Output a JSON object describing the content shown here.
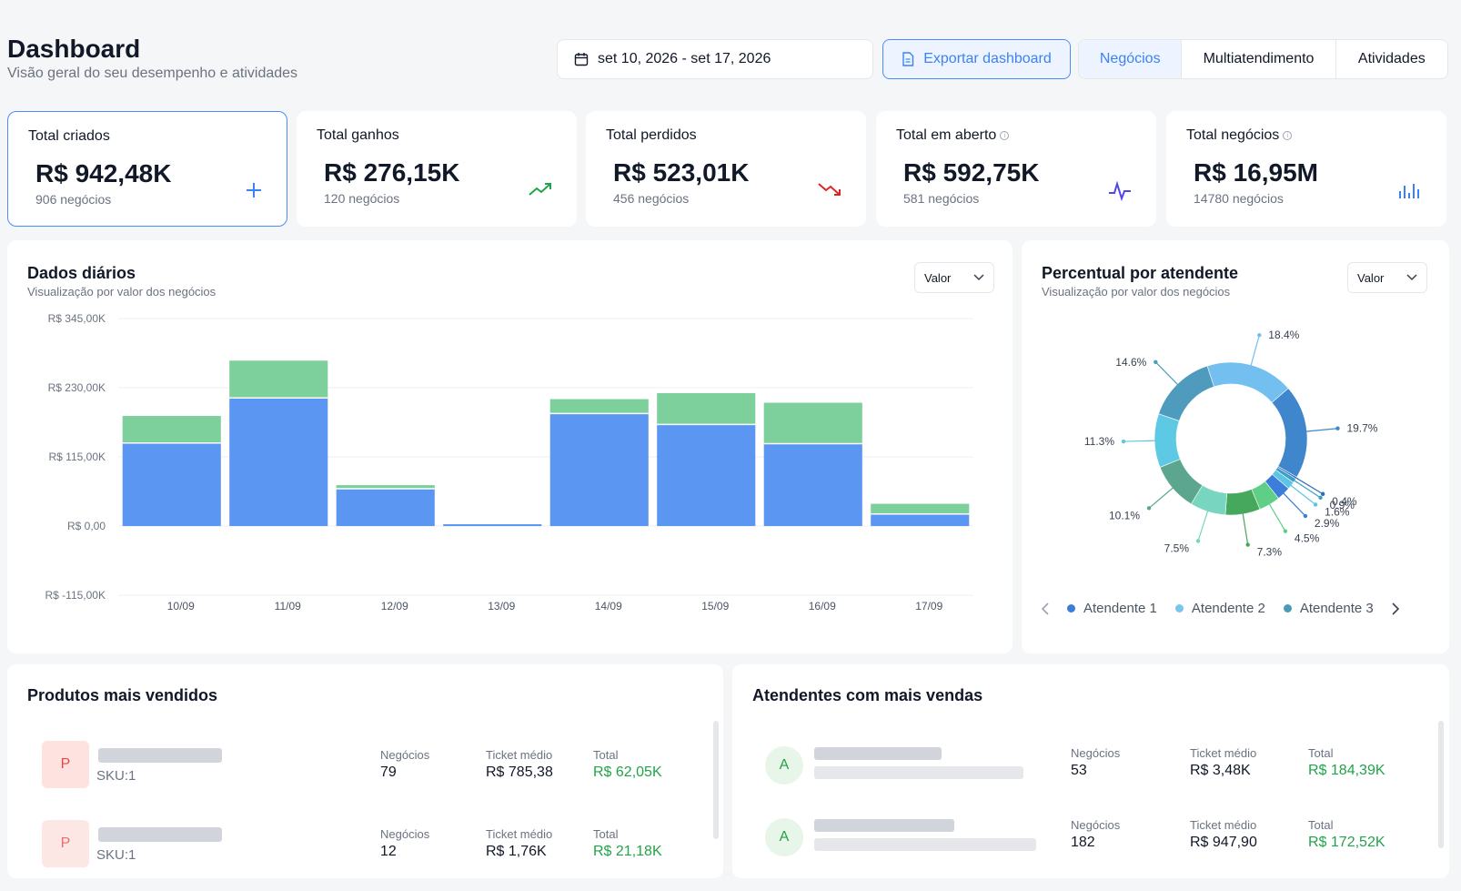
{
  "header": {
    "title": "Dashboard",
    "subtitle": "Visão geral do seu desempenho e atividades",
    "date_range": "set 10, 2026 - set 17, 2026",
    "export_label": "Exportar dashboard",
    "tabs": [
      {
        "label": "Negócios",
        "active": true
      },
      {
        "label": "Multiatendimento",
        "active": false
      },
      {
        "label": "Atividades",
        "active": false
      }
    ]
  },
  "kpis": [
    {
      "label": "Total criados",
      "value": "R$ 942,48K",
      "sub": "906 negócios",
      "icon": "plus-icon",
      "color": "#3b82f6",
      "info": false
    },
    {
      "label": "Total ganhos",
      "value": "R$ 276,15K",
      "sub": "120 negócios",
      "icon": "trending-up-icon",
      "color": "#22a34a",
      "info": false
    },
    {
      "label": "Total perdidos",
      "value": "R$ 523,01K",
      "sub": "456 negócios",
      "icon": "trending-down-icon",
      "color": "#dc2626",
      "info": false
    },
    {
      "label": "Total em aberto",
      "value": "R$ 592,75K",
      "sub": "581 negócios",
      "icon": "activity-icon",
      "color": "#4f46e5",
      "info": true
    },
    {
      "label": "Total negócios",
      "value": "R$ 16,95M",
      "sub": "14780 negócios",
      "icon": "bar-chart-icon",
      "color": "#3b82f6",
      "info": true
    }
  ],
  "daily": {
    "title": "Dados diários",
    "subtitle": "Visualização por valor dos negócios",
    "select": "Valor"
  },
  "attendant": {
    "title": "Percentual por atendente",
    "subtitle": "Visualização por valor dos negócios",
    "select": "Valor",
    "legend": [
      {
        "name": "Atendente 1",
        "color": "#3b7dd8"
      },
      {
        "name": "Atendente 2",
        "color": "#7cc4f0"
      },
      {
        "name": "Atendente 3",
        "color": "#4a9bb8"
      }
    ]
  },
  "chart_data": [
    {
      "type": "bar",
      "stacked": true,
      "categories": [
        "10/09",
        "11/09",
        "12/09",
        "13/09",
        "14/09",
        "15/09",
        "16/09",
        "17/09"
      ],
      "series": [
        {
          "color": "#5b96f2",
          "values": [
            138000,
            213000,
            62000,
            3000,
            187000,
            169000,
            137000,
            20000
          ]
        },
        {
          "color": "#7dcf9b",
          "values": [
            45000,
            62000,
            6000,
            0,
            24000,
            52000,
            68000,
            17000
          ]
        }
      ],
      "yticks": [
        "R$ 345,00K",
        "R$ 230,00K",
        "R$ 115,00K",
        "R$ 0,00",
        "R$ -115,00K"
      ],
      "ylim": [
        -115000,
        345000
      ],
      "grid": true
    },
    {
      "type": "pie",
      "donut": true,
      "labels": [
        "18.4%",
        "19.7%",
        "0.4%",
        "0.9%",
        "1.6%",
        "2.9%",
        "4.5%",
        "7.3%",
        "7.5%",
        "10.1%",
        "11.3%",
        "14.6%"
      ],
      "values": [
        18.4,
        19.7,
        0.4,
        0.9,
        1.6,
        2.9,
        4.5,
        7.3,
        7.5,
        10.1,
        11.3,
        14.6
      ],
      "colors": [
        "#72bff0",
        "#3f86cc",
        "#2f6fb8",
        "#3aa0c8",
        "#5dc4e6",
        "#3b7dd8",
        "#5fcf88",
        "#46a85c",
        "#78d6c0",
        "#5ca68f",
        "#5ec9e4",
        "#4e9bbd"
      ]
    }
  ],
  "products": {
    "title": "Produtos mais vendidos",
    "rows": [
      {
        "initial": "P",
        "sku": "SKU:1",
        "deals_label": "Negócios",
        "deals": "79",
        "ticket_label": "Ticket médio",
        "ticket": "R$ 785,38",
        "total_label": "Total",
        "total": "R$ 62,05K"
      },
      {
        "initial": "P",
        "sku": "SKU:1",
        "deals_label": "Negócios",
        "deals": "12",
        "ticket_label": "Ticket médio",
        "ticket": "R$ 1,76K",
        "total_label": "Total",
        "total": "R$ 21,18K"
      }
    ]
  },
  "attendants": {
    "title": "Atendentes com mais vendas",
    "rows": [
      {
        "initial": "A",
        "deals_label": "Negócios",
        "deals": "53",
        "ticket_label": "Ticket médio",
        "ticket": "R$ 3,48K",
        "total_label": "Total",
        "total": "R$ 184,39K"
      },
      {
        "initial": "A",
        "deals_label": "Negócios",
        "deals": "182",
        "ticket_label": "Ticket médio",
        "ticket": "R$ 947,90",
        "total_label": "Total",
        "total": "R$ 172,52K"
      }
    ]
  }
}
